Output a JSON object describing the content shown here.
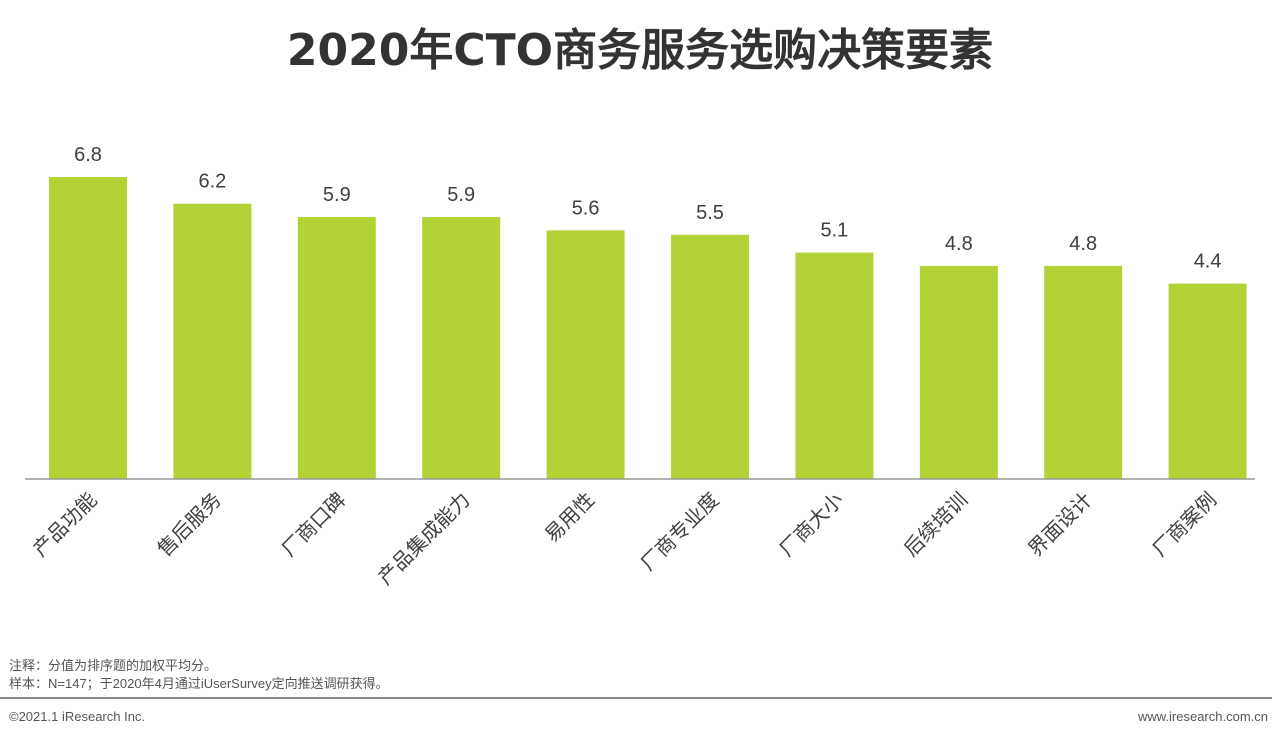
{
  "chart_data": {
    "type": "bar",
    "title": "2020年CTO商务服务选购决策要素",
    "categories": [
      "产品功能",
      "售后服务",
      "厂商口碑",
      "产品集成能力",
      "易用性",
      "厂商专业度",
      "厂商大小",
      "后续培训",
      "界面设计",
      "厂商案例"
    ],
    "values": [
      6.8,
      6.2,
      5.9,
      5.9,
      5.6,
      5.5,
      5.1,
      4.8,
      4.8,
      4.4
    ],
    "xlabel": "",
    "ylabel": "",
    "ylim": [
      0,
      7
    ],
    "grid": false,
    "bar_color": "#b2d235"
  },
  "notes": {
    "note": "注释：分值为排序题的加权平均分。",
    "sample": "样本：N=147；于2020年4月通过iUserSurvey定向推送调研获得。"
  },
  "footer": {
    "copyright": "©2021.1 iResearch Inc.",
    "website": "www.iresearch.com.cn"
  }
}
